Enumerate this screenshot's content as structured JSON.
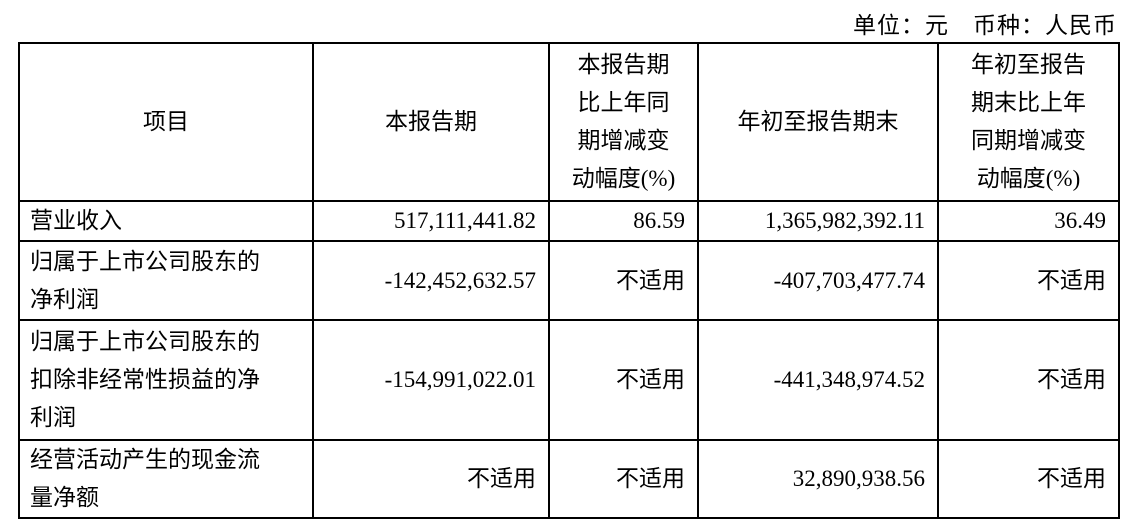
{
  "unit_line": {
    "unit": "单位：元",
    "currency": "币种：人民币"
  },
  "headers": [
    [
      "项目"
    ],
    [
      "本报告期"
    ],
    [
      "本报告期",
      "比上年同",
      "期增减变",
      "动幅度(%)"
    ],
    [
      "年初至报告期末"
    ],
    [
      "年初至报告",
      "期末比上年",
      "同期增减变",
      "动幅度(%)"
    ]
  ],
  "rows": [
    {
      "label": [
        "营业收入"
      ],
      "values": [
        "517,111,441.82",
        "86.59",
        "1,365,982,392.11",
        "36.49"
      ]
    },
    {
      "label": [
        "归属于上市公司股东的",
        "净利润"
      ],
      "values": [
        "-142,452,632.57",
        "不适用",
        "-407,703,477.74",
        "不适用"
      ]
    },
    {
      "label": [
        "归属于上市公司股东的",
        "扣除非经常性损益的净",
        "利润"
      ],
      "values": [
        "-154,991,022.01",
        "不适用",
        "-441,348,974.52",
        "不适用"
      ]
    },
    {
      "label": [
        "经营活动产生的现金流",
        "量净额"
      ],
      "values": [
        "不适用",
        "不适用",
        "32,890,938.56",
        "不适用"
      ]
    }
  ]
}
